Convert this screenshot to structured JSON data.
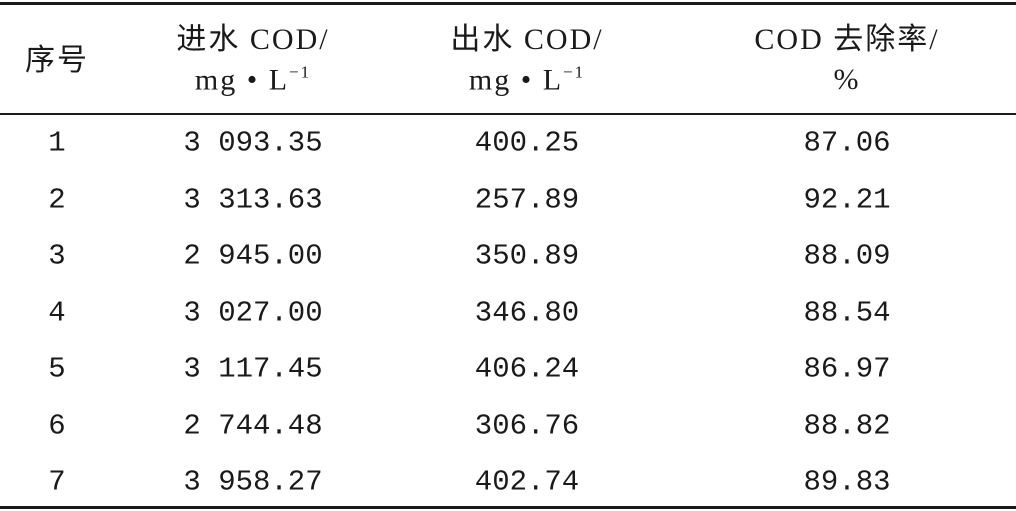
{
  "table": {
    "header": [
      {
        "line1": "序号"
      },
      {
        "line1": "进水 COD/",
        "line2": "mg • L",
        "sup": "−1"
      },
      {
        "line1": "出水 COD/",
        "line2": "mg • L",
        "sup": "−1"
      },
      {
        "line1": "COD 去除率/",
        "line2": "%"
      }
    ],
    "rows": [
      [
        "1",
        "3 093.35",
        "400.25",
        "87.06"
      ],
      [
        "2",
        "3 313.63",
        "257.89",
        "92.21"
      ],
      [
        "3",
        "2 945.00",
        "350.89",
        "88.09"
      ],
      [
        "4",
        "3 027.00",
        "346.80",
        "88.54"
      ],
      [
        "5",
        "3 117.45",
        "406.24",
        "86.97"
      ],
      [
        "6",
        "2 744.48",
        "306.76",
        "88.82"
      ],
      [
        "7",
        "3 958.27",
        "402.74",
        "89.83"
      ]
    ]
  }
}
